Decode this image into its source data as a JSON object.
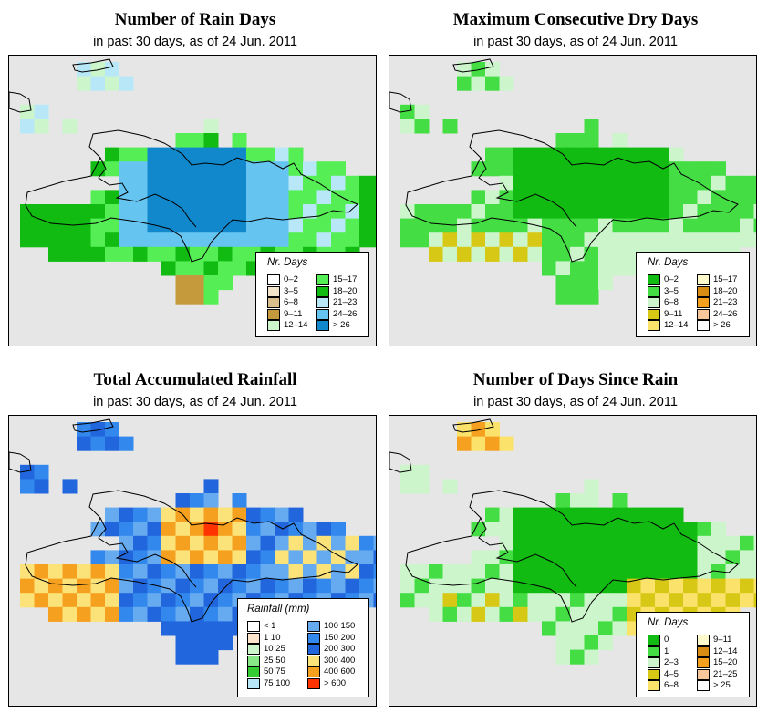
{
  "panels": [
    {
      "title": "Number of Rain Days",
      "subtitle": "in past 30 days, as of  24 Jun. 2011",
      "legend": {
        "title": "Nr. Days",
        "items": [
          {
            "label": "0–2",
            "color": "#ffffff"
          },
          {
            "label": "3–5",
            "color": "#f2e4c8"
          },
          {
            "label": "6–8",
            "color": "#d9bf8c"
          },
          {
            "label": "9–11",
            "color": "#c49a3c"
          },
          {
            "label": "12–14",
            "color": "#ccf5cc"
          },
          {
            "label": "15–17",
            "color": "#55ee55"
          },
          {
            "label": "18–20",
            "color": "#11bb11"
          },
          {
            "label": "21–23",
            "color": "#b8e8f8"
          },
          {
            "label": "24–26",
            "color": "#66c4f0"
          },
          {
            "label": "> 26",
            "color": "#1188cc"
          }
        ]
      }
    },
    {
      "title": "Maximum Consecutive Dry Days",
      "subtitle": "in past 30 days, as of  24 Jun. 2011",
      "legend": {
        "title": "Nr. Days",
        "items": [
          {
            "label": "0–2",
            "color": "#11bb11"
          },
          {
            "label": "3–5",
            "color": "#44dd44"
          },
          {
            "label": "6–8",
            "color": "#ccf5cc"
          },
          {
            "label": "9–11",
            "color": "#d6c815"
          },
          {
            "label": "12–14",
            "color": "#fbe36b"
          },
          {
            "label": "15–17",
            "color": "#fffacc"
          },
          {
            "label": "18–20",
            "color": "#d98c14"
          },
          {
            "label": "21–23",
            "color": "#f5a01e"
          },
          {
            "label": "24–26",
            "color": "#f7c69a"
          },
          {
            "label": "> 26",
            "color": "#ffffff"
          }
        ]
      }
    },
    {
      "title": "Total Accumulated Rainfall",
      "subtitle": "in past 30 days, as of  24 Jun. 2011",
      "legend": {
        "title": "Rainfall (mm)",
        "items": [
          {
            "label": "< 1",
            "color": "#ffffff"
          },
          {
            "label": "1    10",
            "color": "#fbe3cc"
          },
          {
            "label": "10    25",
            "color": "#ccf5cc"
          },
          {
            "label": "25    50",
            "color": "#88e888"
          },
          {
            "label": "50    75",
            "color": "#33cc33"
          },
          {
            "label": "75   100",
            "color": "#b8e8f8"
          },
          {
            "label": "100   150",
            "color": "#66aaf0"
          },
          {
            "label": "150   200",
            "color": "#3388ee"
          },
          {
            "label": "200   300",
            "color": "#2266dd"
          },
          {
            "label": "300   400",
            "color": "#fbe37a"
          },
          {
            "label": "400   600",
            "color": "#f5a01e"
          },
          {
            "label": "> 600",
            "color": "#ff3300"
          }
        ]
      }
    },
    {
      "title": "Number of Days Since Rain",
      "subtitle": "in past 30 days, as of  24 Jun. 2011",
      "legend": {
        "title": "Nr. Days",
        "items": [
          {
            "label": "0",
            "color": "#11bb11"
          },
          {
            "label": "1",
            "color": "#44dd44"
          },
          {
            "label": "2–3",
            "color": "#ccf5cc"
          },
          {
            "label": "4–5",
            "color": "#d6c815"
          },
          {
            "label": "6–8",
            "color": "#fbe36b"
          },
          {
            "label": "9–11",
            "color": "#fffacc"
          },
          {
            "label": "12–14",
            "color": "#d98c14"
          },
          {
            "label": "15–20",
            "color": "#f5a01e"
          },
          {
            "label": "21–25",
            "color": "#f7c69a"
          },
          {
            "label": "> 25",
            "color": "#ffffff"
          }
        ]
      }
    }
  ]
}
